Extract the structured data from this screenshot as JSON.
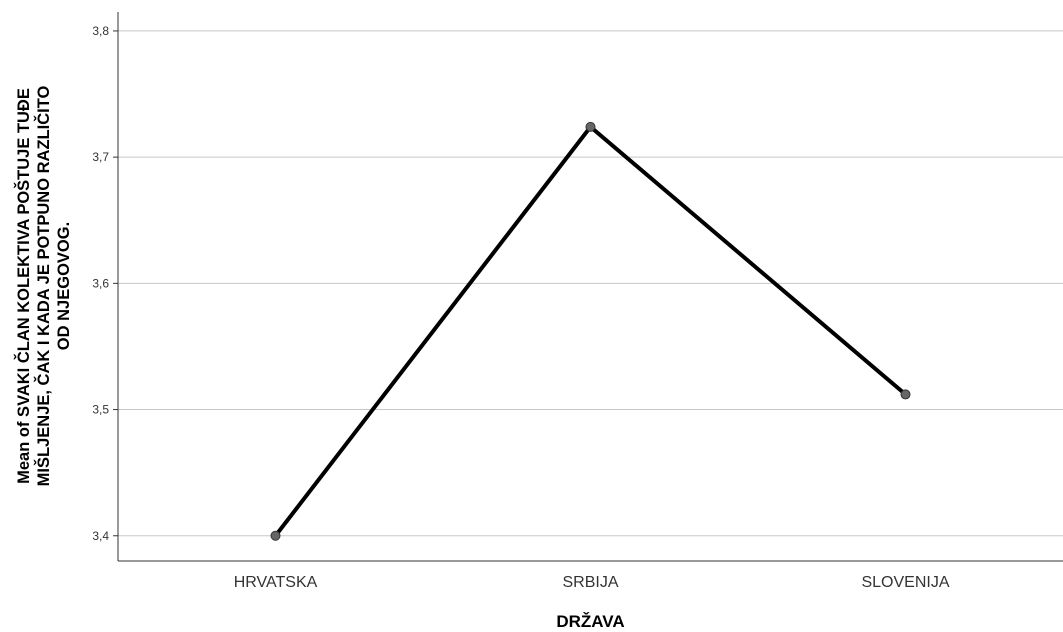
{
  "chart_data": {
    "type": "line",
    "categories": [
      "HRVATSKA",
      "SRBIJA",
      "SLOVENIJA"
    ],
    "series": [
      {
        "values": [
          3.4,
          3.724,
          3.512
        ]
      }
    ],
    "xlabel": "DRŽAVA",
    "ylabel_lines": [
      "Mean of SVAKI ČLAN KOLEKTIVA POŠTUJE TUĐE",
      "MIŠLJENJE, ČAK I KADA JE POTPUNO RAZLIČITO",
      "OD NJEGOVOG."
    ],
    "ylim": [
      3.38,
      3.815
    ],
    "yticks": [
      3.4,
      3.5,
      3.6,
      3.7,
      3.8
    ],
    "ytick_labels": [
      "3,4",
      "3,5",
      "3,6",
      "3,7",
      "3,8"
    ],
    "grid": true,
    "colors": {
      "line": "#000000",
      "marker": "#666666",
      "grid": "#c8c8c8",
      "axis": "#333333"
    }
  }
}
